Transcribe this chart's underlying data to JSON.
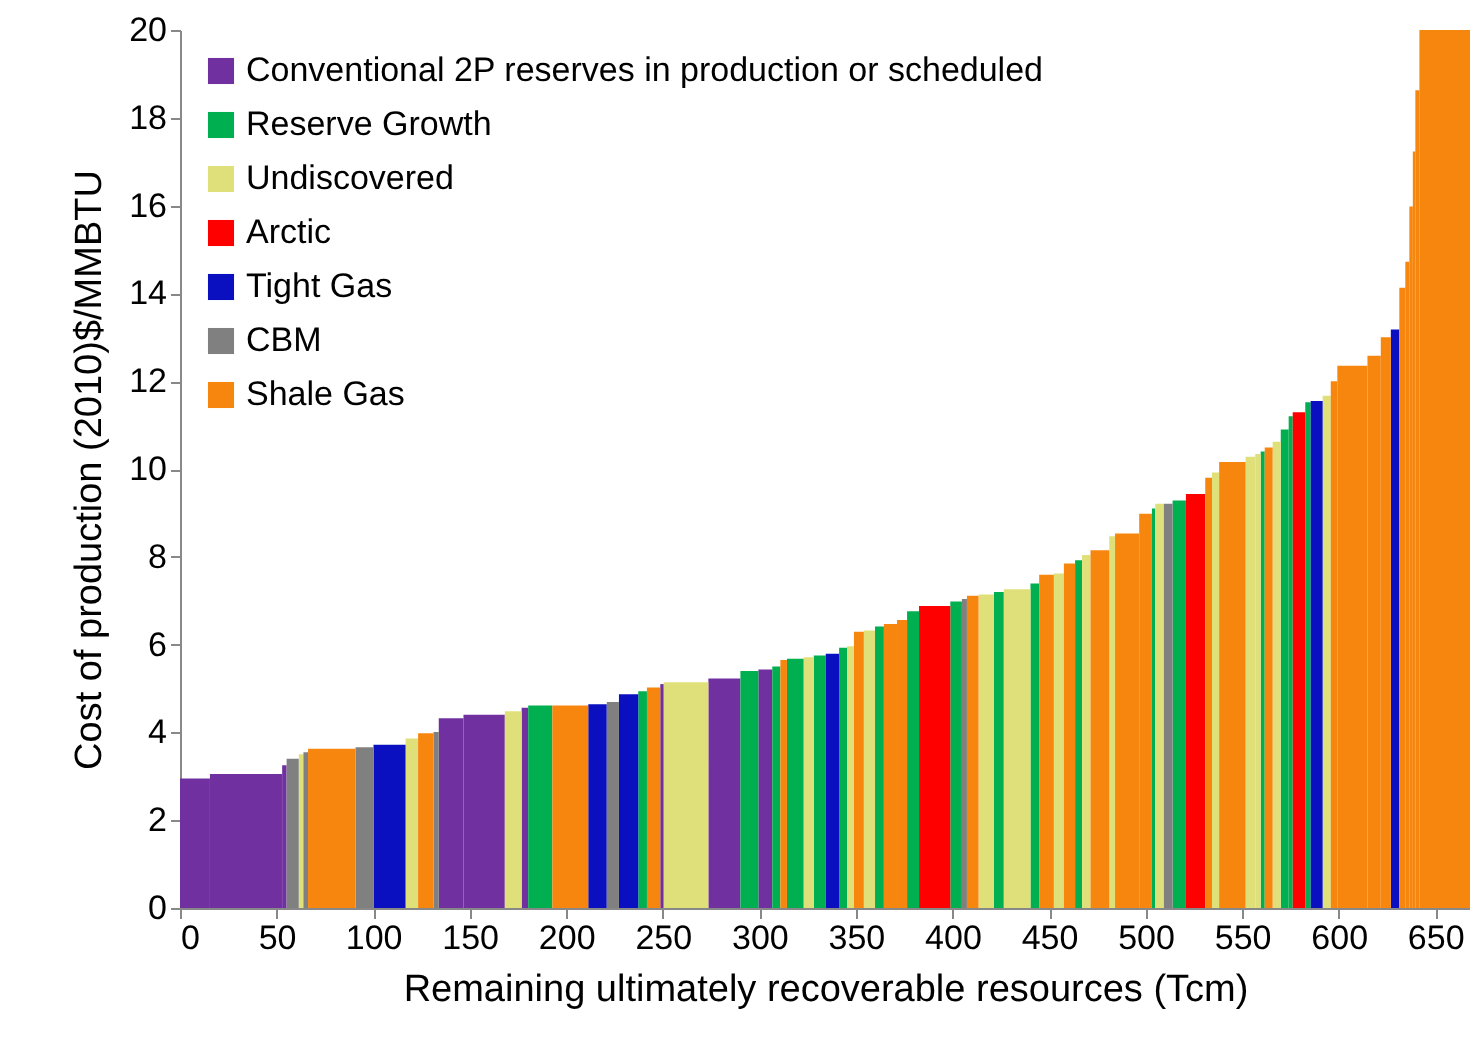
{
  "chart_data": {
    "type": "histogram",
    "xlabel": "Remaining ultimately recoverable resources (Tcm)",
    "ylabel": "Cost of production (2010)$/MMBTU",
    "xlim": [
      0,
      668
    ],
    "xticks": [
      0,
      50,
      100,
      150,
      200,
      250,
      300,
      350,
      400,
      450,
      500,
      550,
      600,
      650
    ],
    "ylim": [
      0,
      20
    ],
    "yticks": [
      0,
      2,
      4,
      6,
      8,
      10,
      12,
      14,
      16,
      18,
      20
    ],
    "grid": false,
    "legend": "top left",
    "bins": [
      0,
      15.5,
      52.9,
      55.2,
      61.5,
      63.9,
      66.3,
      90.9,
      100.2,
      116.8,
      123.3,
      131.3,
      134.0,
      146.8,
      168.2,
      176.9,
      180.3,
      192.8,
      211.4,
      221.0,
      227.3,
      237.3,
      241.8,
      248.7,
      250.5,
      273.6,
      290.2,
      299.5,
      306.7,
      310.9,
      314.3,
      323.0,
      328.2,
      334.4,
      341.3,
      345.4,
      349.0,
      354.1,
      359.9,
      364.5,
      371.3,
      376.5,
      382.7,
      398.9,
      404.9,
      407.5,
      413.5,
      421.5,
      426.6,
      440.4,
      444.9,
      452.5,
      457.7,
      463.5,
      467.1,
      471.5,
      481.2,
      484.2,
      496.7,
      503.3,
      505.0,
      509.5,
      514.0,
      520.9,
      530.9,
      534.4,
      538.1,
      551.8,
      556.8,
      559.6,
      561.7,
      565.8,
      570.0,
      574.1,
      576.2,
      582.7,
      585.5,
      591.7,
      595.9,
      599.3,
      614.9,
      621.8,
      627.0,
      631.4,
      634.5,
      636.6,
      638.4,
      639.7,
      641.8,
      668
    ],
    "series": [
      {
        "name": "Conventional 2P reserves in production or scheduled",
        "color": "#7030a0",
        "values": [
          2.95,
          3.05,
          3.25,
          null,
          null,
          null,
          null,
          null,
          null,
          null,
          null,
          null,
          4.32,
          4.4,
          null,
          4.56,
          null,
          null,
          null,
          null,
          null,
          null,
          null,
          5.1,
          null,
          5.23,
          null,
          5.43,
          null,
          null,
          null,
          null,
          null,
          null,
          null,
          null,
          null,
          null,
          null,
          null,
          null,
          null,
          null,
          null,
          null,
          null,
          null,
          null,
          null,
          null,
          null,
          null,
          null,
          null,
          null,
          null,
          null,
          null,
          null,
          null,
          null,
          null,
          null,
          null,
          null,
          null,
          null,
          null,
          null,
          null,
          null,
          null,
          null,
          null,
          null,
          null,
          null,
          null,
          null,
          null,
          null,
          null,
          null,
          null,
          null,
          null,
          null,
          null,
          null
        ]
      },
      {
        "name": "Reserve Growth",
        "color": "#00b050",
        "values": [
          null,
          null,
          null,
          null,
          null,
          null,
          null,
          null,
          null,
          null,
          null,
          null,
          null,
          null,
          null,
          null,
          4.61,
          null,
          null,
          null,
          null,
          4.94,
          null,
          null,
          null,
          null,
          5.4,
          null,
          5.5,
          null,
          5.68,
          null,
          5.75,
          null,
          5.93,
          null,
          null,
          null,
          6.41,
          null,
          null,
          6.76,
          null,
          6.98,
          null,
          null,
          null,
          7.2,
          null,
          7.39,
          null,
          null,
          null,
          7.92,
          null,
          null,
          null,
          null,
          null,
          9.1,
          null,
          null,
          9.28,
          null,
          null,
          null,
          null,
          null,
          null,
          10.4,
          null,
          null,
          10.9,
          11.2,
          null,
          11.52,
          null,
          null,
          null,
          null,
          null,
          null,
          null,
          null,
          null,
          null,
          null,
          null,
          null
        ]
      },
      {
        "name": "Undiscovered",
        "color": "#e0e07a",
        "values": [
          null,
          null,
          null,
          null,
          3.5,
          null,
          null,
          null,
          null,
          3.86,
          null,
          null,
          null,
          null,
          4.48,
          null,
          null,
          null,
          null,
          null,
          null,
          null,
          null,
          null,
          5.14,
          null,
          null,
          null,
          null,
          null,
          null,
          5.71,
          null,
          null,
          null,
          5.96,
          null,
          6.32,
          null,
          null,
          null,
          null,
          null,
          null,
          null,
          null,
          7.14,
          null,
          7.26,
          null,
          null,
          7.62,
          null,
          null,
          8.04,
          null,
          8.47,
          null,
          null,
          null,
          9.21,
          null,
          null,
          null,
          null,
          9.92,
          null,
          10.28,
          10.34,
          null,
          null,
          10.62,
          null,
          null,
          null,
          null,
          null,
          11.67,
          null,
          null,
          null,
          null,
          null,
          null,
          null,
          null,
          null,
          null,
          null
        ]
      },
      {
        "name": "Arctic",
        "color": "#ff0000",
        "values": [
          null,
          null,
          null,
          null,
          null,
          null,
          null,
          null,
          null,
          null,
          null,
          null,
          null,
          null,
          null,
          null,
          null,
          null,
          null,
          null,
          null,
          null,
          null,
          null,
          null,
          null,
          null,
          null,
          null,
          null,
          null,
          null,
          null,
          null,
          null,
          null,
          null,
          null,
          null,
          null,
          null,
          null,
          6.88,
          null,
          null,
          null,
          null,
          null,
          null,
          null,
          null,
          null,
          null,
          null,
          null,
          null,
          null,
          null,
          null,
          null,
          null,
          null,
          null,
          9.43,
          null,
          null,
          null,
          null,
          null,
          null,
          null,
          null,
          null,
          null,
          11.29,
          null,
          null,
          null,
          null,
          null,
          null,
          null,
          null,
          null,
          null,
          null,
          null,
          null,
          null
        ]
      },
      {
        "name": "Tight Gas",
        "color": "#0a10c0",
        "values": [
          null,
          null,
          null,
          null,
          null,
          null,
          null,
          null,
          3.72,
          null,
          null,
          null,
          null,
          null,
          null,
          null,
          null,
          null,
          4.64,
          null,
          4.87,
          null,
          null,
          null,
          null,
          null,
          null,
          null,
          null,
          null,
          null,
          null,
          null,
          5.79,
          null,
          null,
          null,
          null,
          null,
          null,
          null,
          null,
          null,
          null,
          null,
          null,
          null,
          null,
          null,
          null,
          null,
          null,
          null,
          null,
          null,
          null,
          null,
          null,
          null,
          null,
          null,
          null,
          null,
          null,
          null,
          null,
          null,
          null,
          null,
          null,
          null,
          null,
          null,
          null,
          null,
          null,
          11.55,
          null,
          null,
          null,
          null,
          null,
          13.18,
          null,
          null,
          null,
          null,
          null,
          null
        ]
      },
      {
        "name": "CBM",
        "color": "#808080",
        "values": [
          null,
          null,
          null,
          3.4,
          null,
          3.55,
          null,
          3.66,
          null,
          null,
          null,
          4.01,
          null,
          null,
          null,
          null,
          null,
          null,
          null,
          4.69,
          null,
          null,
          null,
          null,
          null,
          null,
          null,
          null,
          null,
          null,
          null,
          null,
          null,
          null,
          null,
          null,
          null,
          null,
          null,
          null,
          null,
          null,
          null,
          null,
          7.04,
          null,
          null,
          null,
          null,
          null,
          null,
          null,
          null,
          null,
          null,
          null,
          null,
          null,
          null,
          null,
          null,
          9.21,
          null,
          null,
          null,
          null,
          null,
          null,
          null,
          null,
          null,
          null,
          null,
          null,
          null,
          null,
          null,
          null,
          null,
          null,
          null,
          null,
          null,
          null,
          null,
          null,
          null,
          null,
          null
        ]
      },
      {
        "name": "Shale Gas",
        "color": "#f7860e",
        "values": [
          null,
          null,
          null,
          null,
          null,
          null,
          3.63,
          null,
          null,
          null,
          3.98,
          null,
          null,
          null,
          null,
          null,
          null,
          4.61,
          null,
          null,
          null,
          null,
          5.02,
          null,
          null,
          null,
          null,
          null,
          null,
          5.65,
          null,
          null,
          null,
          null,
          null,
          null,
          6.29,
          null,
          null,
          6.47,
          6.56,
          null,
          null,
          null,
          null,
          7.11,
          null,
          null,
          null,
          null,
          7.59,
          null,
          7.85,
          null,
          null,
          8.15,
          null,
          8.53,
          8.98,
          null,
          null,
          null,
          null,
          null,
          9.8,
          null,
          10.16,
          null,
          null,
          null,
          10.49,
          null,
          null,
          null,
          null,
          null,
          null,
          null,
          12.0,
          12.35,
          12.58,
          13.0,
          null,
          14.13,
          14.72,
          15.98,
          17.23,
          18.63,
          20
        ]
      }
    ]
  }
}
